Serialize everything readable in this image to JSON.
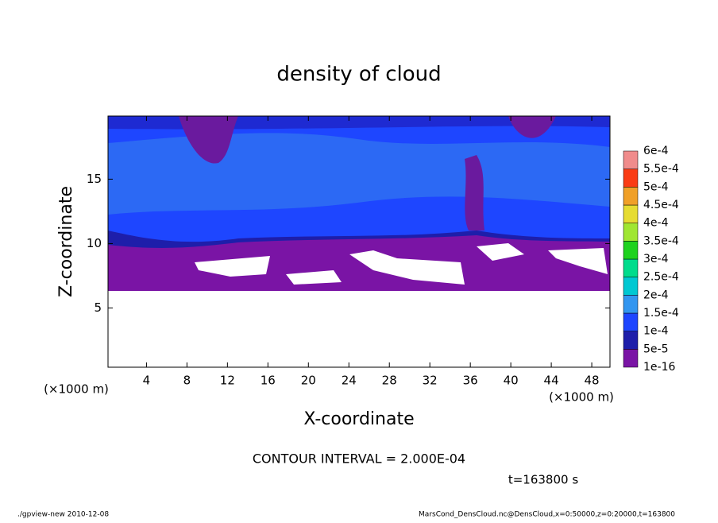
{
  "chart_data": {
    "type": "contour",
    "title": "density of cloud",
    "xlabel": "X-coordinate",
    "ylabel": "Z-coordinate",
    "x_unit_label": "(×1000 m)",
    "xlim": [
      0.2,
      49.8
    ],
    "xticks": [
      4,
      8,
      12,
      16,
      20,
      24,
      28,
      32,
      36,
      40,
      44,
      48
    ],
    "ylim": [
      0.4,
      19.9
    ],
    "yticks": [
      5,
      10,
      15
    ],
    "colorbar_levels": [
      {
        "value": 1e-16,
        "label": "1e-16"
      },
      {
        "value": 5e-05,
        "label": "5e-5"
      },
      {
        "value": 0.0001,
        "label": "1e-4"
      },
      {
        "value": 0.00015,
        "label": "1.5e-4"
      },
      {
        "value": 0.0002,
        "label": "2e-4"
      },
      {
        "value": 0.00025,
        "label": "2.5e-4"
      },
      {
        "value": 0.0003,
        "label": "3e-4"
      },
      {
        "value": 0.00035,
        "label": "3.5e-4"
      },
      {
        "value": 0.0004,
        "label": "4e-4"
      },
      {
        "value": 0.00045,
        "label": "4.5e-4"
      },
      {
        "value": 0.0005,
        "label": "5e-4"
      },
      {
        "value": 0.00055,
        "label": "5.5e-4"
      },
      {
        "value": 0.0006,
        "label": "6e-4"
      }
    ],
    "colorbar_colors": [
      "#7a14a5",
      "#1e1eaa",
      "#1e46ff",
      "#3296f0",
      "#00c8d2",
      "#00dc8c",
      "#1ed21e",
      "#a0e632",
      "#e6dc32",
      "#f0a028",
      "#fa3c14",
      "#f08c8c"
    ],
    "contour_interval": "CONTOUR INTERVAL = 2.000E-04",
    "time_label": "t=163800 s",
    "footer_left": "./gpview-new  2010-12-08",
    "footer_right": "MarsCond_DensCloud.nc@DensCloud,x=0:50000,z=0:20000,t=163800"
  }
}
